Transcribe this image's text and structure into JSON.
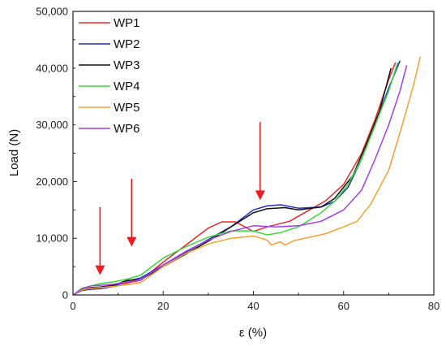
{
  "chart_data": {
    "type": "line",
    "title": "",
    "xlabel": "ε (%)",
    "ylabel": "Load (N)",
    "xlim": [
      0,
      80
    ],
    "ylim": [
      0,
      50000
    ],
    "x_ticks": [
      0,
      20,
      40,
      60,
      80
    ],
    "x_tick_labels": [
      "0",
      "20",
      "40",
      "60",
      "80"
    ],
    "y_ticks": [
      0,
      10000,
      20000,
      30000,
      40000,
      50000
    ],
    "y_tick_labels": [
      "0",
      "10,000",
      "20,000",
      "30,000",
      "40,000",
      "50,000"
    ],
    "grid": false,
    "legend_position": "top-left",
    "series": [
      {
        "name": "WP1",
        "color": "#e8282e",
        "points": [
          [
            0,
            0
          ],
          [
            2,
            900
          ],
          [
            4,
            1300
          ],
          [
            6,
            1300
          ],
          [
            8,
            1600
          ],
          [
            12,
            2100
          ],
          [
            15,
            2600
          ],
          [
            20,
            5800
          ],
          [
            25,
            8800
          ],
          [
            30,
            11800
          ],
          [
            33,
            12900
          ],
          [
            36,
            12900
          ],
          [
            40,
            11200
          ],
          [
            43,
            12000
          ],
          [
            48,
            13000
          ],
          [
            52,
            14800
          ],
          [
            56,
            16600
          ],
          [
            60,
            19500
          ],
          [
            64,
            25000
          ],
          [
            67,
            31000
          ],
          [
            70,
            38000
          ],
          [
            71.5,
            41000
          ]
        ]
      },
      {
        "name": "WP2",
        "color": "#2030b8",
        "points": [
          [
            0,
            0
          ],
          [
            2,
            800
          ],
          [
            4,
            1000
          ],
          [
            6,
            1100
          ],
          [
            9,
            1500
          ],
          [
            12,
            2500
          ],
          [
            15,
            3000
          ],
          [
            20,
            5300
          ],
          [
            25,
            7500
          ],
          [
            30,
            9800
          ],
          [
            35,
            12000
          ],
          [
            40,
            15000
          ],
          [
            43,
            15700
          ],
          [
            46,
            15900
          ],
          [
            50,
            15300
          ],
          [
            55,
            15500
          ],
          [
            58,
            16500
          ],
          [
            61,
            19000
          ],
          [
            64,
            24000
          ],
          [
            67,
            30000
          ],
          [
            70,
            36500
          ],
          [
            72.5,
            41300
          ]
        ]
      },
      {
        "name": "WP3",
        "color": "#111111",
        "points": [
          [
            0,
            0
          ],
          [
            2,
            900
          ],
          [
            4,
            1300
          ],
          [
            6,
            1400
          ],
          [
            9,
            1700
          ],
          [
            12,
            2600
          ],
          [
            15,
            2700
          ],
          [
            20,
            5000
          ],
          [
            25,
            7200
          ],
          [
            30,
            9500
          ],
          [
            35,
            12000
          ],
          [
            40,
            14500
          ],
          [
            43,
            15200
          ],
          [
            47,
            15400
          ],
          [
            50,
            15000
          ],
          [
            55,
            15500
          ],
          [
            58,
            17000
          ],
          [
            62,
            21000
          ],
          [
            65,
            26500
          ],
          [
            68,
            32500
          ],
          [
            70.5,
            40000
          ]
        ]
      },
      {
        "name": "WP4",
        "color": "#3cd83c",
        "points": [
          [
            0,
            0
          ],
          [
            2,
            1200
          ],
          [
            4,
            1600
          ],
          [
            6,
            2000
          ],
          [
            9,
            2300
          ],
          [
            12,
            2800
          ],
          [
            15,
            3500
          ],
          [
            20,
            6500
          ],
          [
            25,
            8500
          ],
          [
            30,
            10200
          ],
          [
            35,
            11300
          ],
          [
            40,
            11300
          ],
          [
            43,
            10600
          ],
          [
            46,
            11000
          ],
          [
            50,
            12000
          ],
          [
            55,
            14500
          ],
          [
            58,
            16500
          ],
          [
            61,
            19500
          ],
          [
            64,
            24000
          ],
          [
            67,
            30000
          ],
          [
            70,
            36000
          ],
          [
            72,
            41000
          ]
        ]
      },
      {
        "name": "WP5",
        "color": "#f5a030",
        "points": [
          [
            0,
            0
          ],
          [
            2,
            900
          ],
          [
            4,
            1200
          ],
          [
            6,
            1300
          ],
          [
            9,
            1500
          ],
          [
            12,
            1800
          ],
          [
            15,
            2200
          ],
          [
            20,
            5000
          ],
          [
            25,
            7300
          ],
          [
            30,
            9000
          ],
          [
            35,
            10000
          ],
          [
            40,
            10400
          ],
          [
            43,
            9700
          ],
          [
            44,
            8800
          ],
          [
            46,
            9400
          ],
          [
            47,
            8800
          ],
          [
            49,
            9600
          ],
          [
            52,
            10100
          ],
          [
            56,
            10800
          ],
          [
            60,
            12000
          ],
          [
            63,
            13000
          ],
          [
            66,
            16000
          ],
          [
            70,
            22000
          ],
          [
            73,
            30000
          ],
          [
            75.5,
            37000
          ],
          [
            77,
            42000
          ]
        ]
      },
      {
        "name": "WP6",
        "color": "#a040e8",
        "points": [
          [
            0,
            0
          ],
          [
            2,
            1100
          ],
          [
            4,
            1600
          ],
          [
            6,
            1700
          ],
          [
            9,
            1900
          ],
          [
            12,
            2300
          ],
          [
            15,
            2700
          ],
          [
            20,
            5300
          ],
          [
            25,
            7700
          ],
          [
            30,
            9700
          ],
          [
            35,
            11200
          ],
          [
            40,
            12200
          ],
          [
            45,
            12000
          ],
          [
            50,
            12200
          ],
          [
            55,
            13000
          ],
          [
            60,
            15000
          ],
          [
            64,
            18500
          ],
          [
            67,
            24000
          ],
          [
            70,
            30000
          ],
          [
            72.5,
            36000
          ],
          [
            74,
            40500
          ]
        ]
      }
    ],
    "annotations": [
      {
        "type": "arrow",
        "color": "#ee1c1c",
        "x": 6,
        "y_from": 15500,
        "y_to": 3500
      },
      {
        "type": "arrow",
        "color": "#ee1c1c",
        "x": 13,
        "y_from": 20500,
        "y_to": 8500
      },
      {
        "type": "arrow",
        "color": "#ee1c1c",
        "x": 41.5,
        "y_from": 30500,
        "y_to": 16700
      }
    ]
  }
}
